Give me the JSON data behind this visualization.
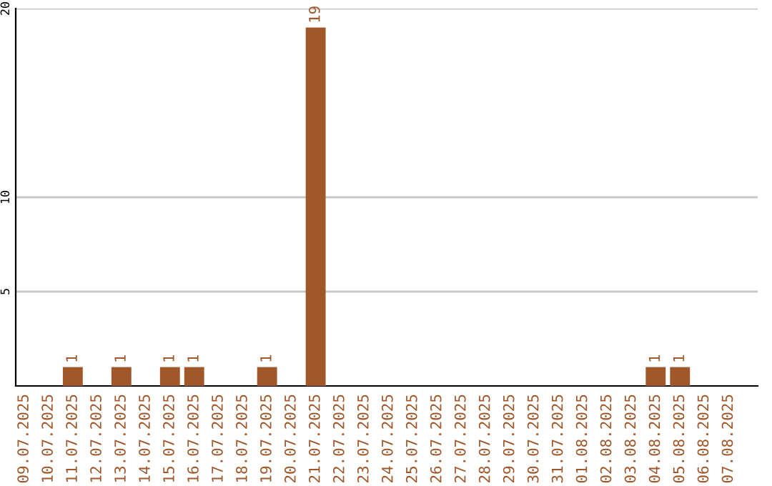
{
  "chart_data": {
    "type": "bar",
    "categories": [
      "09.07.2025",
      "10.07.2025",
      "11.07.2025",
      "12.07.2025",
      "13.07.2025",
      "14.07.2025",
      "15.07.2025",
      "16.07.2025",
      "17.07.2025",
      "18.07.2025",
      "19.07.2025",
      "20.07.2025",
      "21.07.2025",
      "22.07.2025",
      "23.07.2025",
      "24.07.2025",
      "25.07.2025",
      "26.07.2025",
      "27.07.2025",
      "28.07.2025",
      "29.07.2025",
      "30.07.2025",
      "31.07.2025",
      "01.08.2025",
      "02.08.2025",
      "03.08.2025",
      "04.08.2025",
      "05.08.2025",
      "06.08.2025",
      "07.08.2025"
    ],
    "values": [
      0,
      0,
      1,
      0,
      1,
      0,
      1,
      1,
      0,
      0,
      1,
      0,
      19,
      0,
      0,
      0,
      0,
      0,
      0,
      0,
      0,
      0,
      0,
      0,
      0,
      0,
      1,
      1,
      0,
      0
    ],
    "value_labels": [
      null,
      null,
      "1",
      null,
      "1",
      null,
      "1",
      "1",
      null,
      null,
      "1",
      null,
      "19",
      null,
      null,
      null,
      null,
      null,
      null,
      null,
      null,
      null,
      null,
      null,
      null,
      null,
      "1",
      "1",
      null,
      null
    ],
    "color": "#a0572a",
    "ylim": [
      0,
      20
    ],
    "yticks": [
      5,
      10,
      20
    ],
    "grid": "y",
    "legend": false
  }
}
